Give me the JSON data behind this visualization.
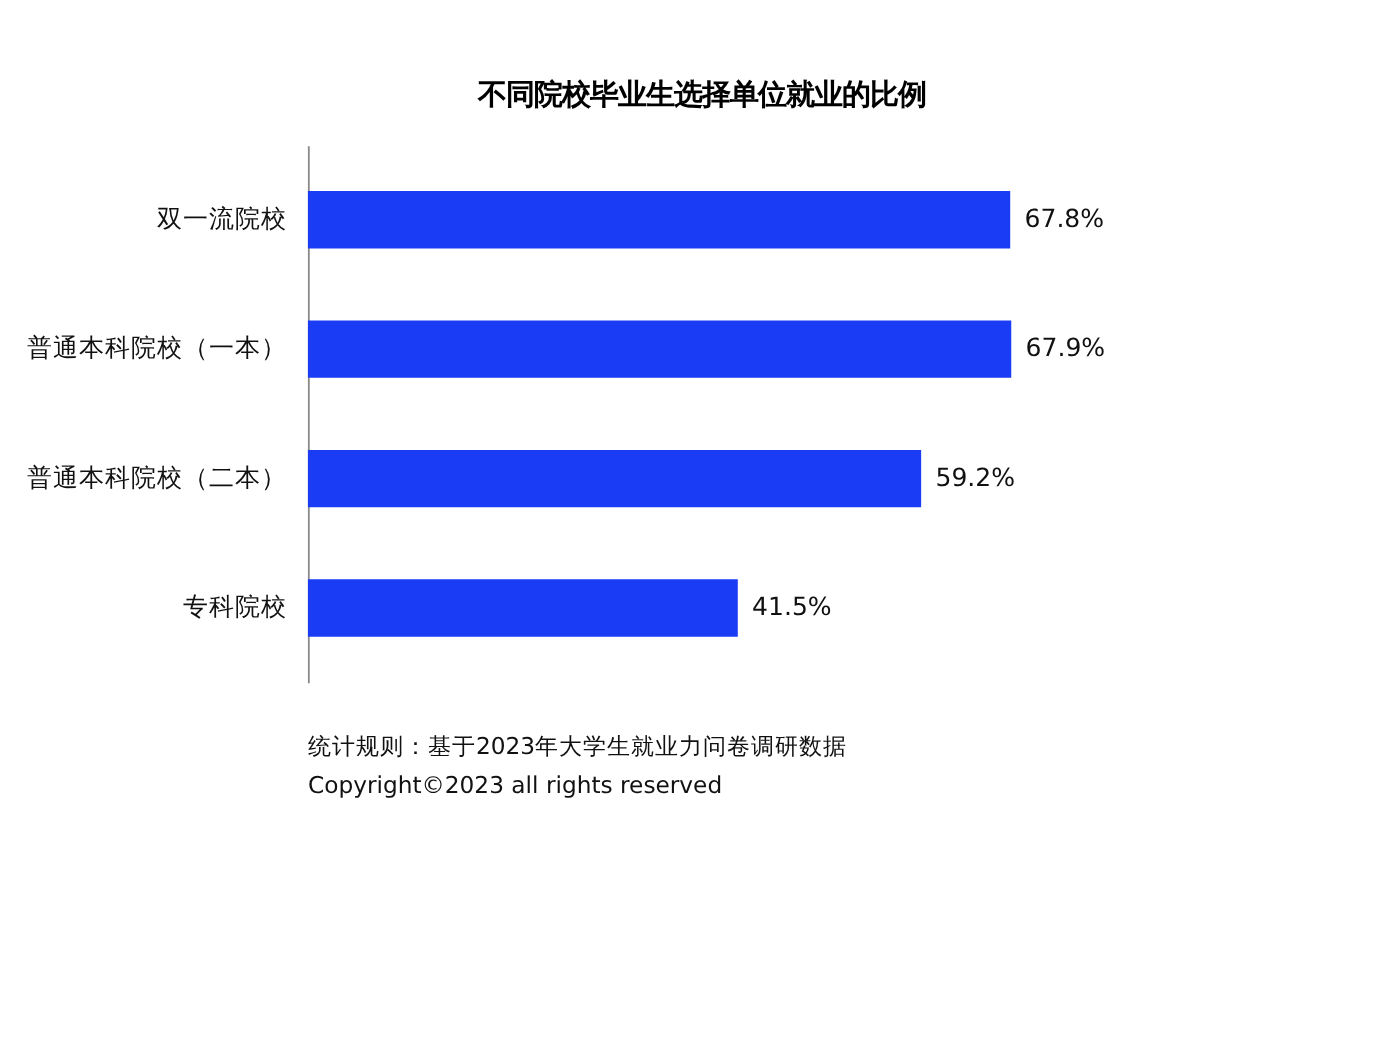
{
  "chart_data": {
    "type": "bar",
    "orientation": "horizontal",
    "title": "不同院校毕业生选择单位就业的比例",
    "categories": [
      "双一流院校",
      "普通本科院校（一本）",
      "普通本科院校（二本）",
      "专科院校"
    ],
    "values": [
      67.8,
      67.9,
      59.2,
      41.5
    ],
    "value_labels": [
      "67.8%",
      "67.9%",
      "59.2%",
      "41.5%"
    ],
    "color": "#1a3cf5",
    "tick_labels": "y",
    "annotations": [
      "统计规则：基于2023年大学生就业力问卷调研数据",
      "Copyright©2023 all rights reserved"
    ]
  }
}
